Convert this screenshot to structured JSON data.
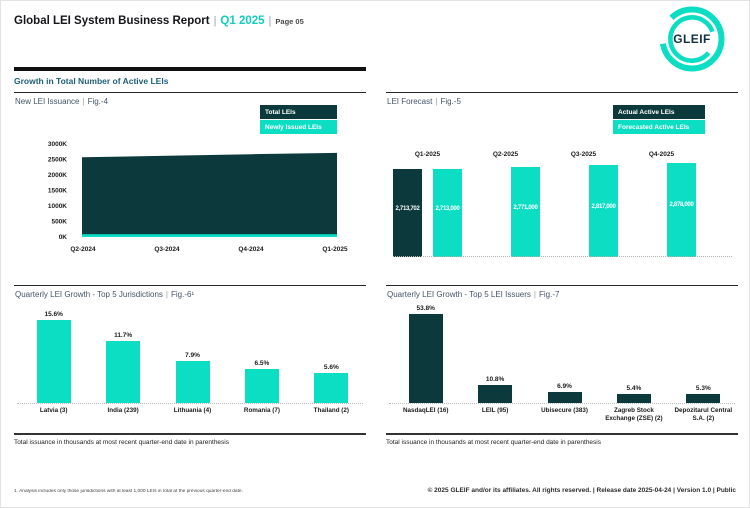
{
  "header": {
    "title": "Global LEI System Business Report",
    "separator": "|",
    "period": "Q1 2025",
    "page_label": "Page 05",
    "logo_text": "GLEIF"
  },
  "section": {
    "title": "Growth in Total Number of Active LEIs"
  },
  "colors": {
    "teal": "#0cdec4",
    "dark_teal": "#0c393b",
    "section_blue": "#1d5f78"
  },
  "captions": {
    "issuance_note": "Total issuance in thousands at most recent quarter-end date in parenthesis"
  },
  "footer": {
    "footnote": "1. Analysis includes only those jurisdictions with at least 1,000 LEIs in total at the previous quarter-end date.",
    "copyright": "© 2025 GLEIF and/or its affiliates. All rights reserved. | Release date 2025-04-24 | Version 1.0 | Public"
  },
  "chart_data": [
    {
      "id": "fig4",
      "type": "area",
      "title": "New LEI Issuance",
      "figure_label": "Fig.-4",
      "legend": [
        {
          "label": "Total LEIs",
          "color": "#0c393b"
        },
        {
          "label": "Newly Issued LEIs",
          "color": "#0cdec4"
        }
      ],
      "x": [
        "Q2-2024",
        "Q3-2024",
        "Q4-2024",
        "Q1-2025"
      ],
      "series": [
        {
          "name": "Total LEIs",
          "values": [
            2570000,
            2620000,
            2670000,
            2713702
          ]
        },
        {
          "name": "Newly Issued LEIs",
          "values": [
            90000,
            90000,
            90000,
            90000
          ]
        }
      ],
      "y_ticks": [
        "3000K",
        "2500K",
        "2000K",
        "1500K",
        "1000K",
        "500K",
        "0K"
      ],
      "ylim": [
        0,
        3000000
      ],
      "grid": false,
      "legend_position": "top-right"
    },
    {
      "id": "fig5",
      "type": "bar",
      "title": "LEI Forecast",
      "figure_label": "Fig.-5",
      "legend": [
        {
          "label": "Actual Active LEIs",
          "color": "#0c393b"
        },
        {
          "label": "Forecasted Active LEIs",
          "color": "#0cdec4"
        }
      ],
      "categories": [
        "Q1-2025",
        "Q2-2025",
        "Q3-2025",
        "Q4-2025"
      ],
      "series": [
        {
          "name": "Actual Active LEIs",
          "values": [
            2713702,
            null,
            null,
            null
          ],
          "labels": [
            "2,713,702",
            null,
            null,
            null
          ]
        },
        {
          "name": "Forecasted Active LEIs",
          "values": [
            2713000,
            2771000,
            2817000,
            2878000
          ],
          "labels": [
            "2,713,000",
            "2,771,000",
            "2,817,000",
            "2,878,000"
          ]
        }
      ],
      "legend_position": "top-right"
    },
    {
      "id": "fig6",
      "type": "bar",
      "title": "Quarterly LEI Growth - Top 5 Jurisdictions",
      "figure_label": "Fig.-6¹",
      "categories": [
        "Latvia (3)",
        "India (239)",
        "Lithuania (4)",
        "Romania (7)",
        "Thailand (2)"
      ],
      "values": [
        15.6,
        11.7,
        7.9,
        6.5,
        5.6
      ],
      "labels": [
        "15.6%",
        "11.7%",
        "7.9%",
        "6.5%",
        "5.6%"
      ],
      "bar_color": "#0cdec4"
    },
    {
      "id": "fig7",
      "type": "bar",
      "title": "Quarterly LEI Growth - Top 5 LEI Issuers",
      "figure_label": "Fig.-7",
      "categories": [
        "NasdaqLEI (16)",
        "LEIL (95)",
        "Ubisecure (383)",
        "Zagreb Stock Exchange (ZSE) (2)",
        "Depozitarul Central S.A. (2)"
      ],
      "values": [
        53.8,
        10.8,
        6.9,
        5.4,
        5.3
      ],
      "labels": [
        "53.8%",
        "10.8%",
        "6.9%",
        "5.4%",
        "5.3%"
      ],
      "bar_color": "#0c393b"
    }
  ]
}
